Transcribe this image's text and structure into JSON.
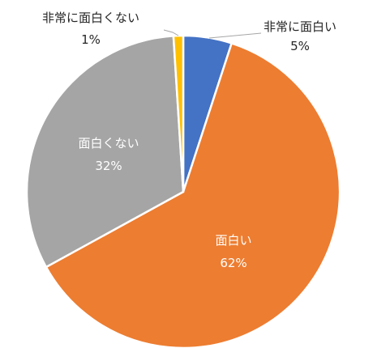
{
  "chart_data": {
    "type": "pie",
    "categories": [
      "非常に面白い",
      "面白い",
      "面白くない",
      "非常に面白くない"
    ],
    "values": [
      5,
      62,
      32,
      1
    ],
    "colors": [
      "#4472c4",
      "#ed7d31",
      "#a5a5a5",
      "#ffc000"
    ],
    "data_labels": [
      {
        "name": "非常に面白い",
        "pct": "5%"
      },
      {
        "name": "面白い",
        "pct": "62%"
      },
      {
        "name": "面白くない",
        "pct": "32%"
      },
      {
        "name": "非常に面白くない",
        "pct": "1%"
      }
    ],
    "legend": "none"
  }
}
